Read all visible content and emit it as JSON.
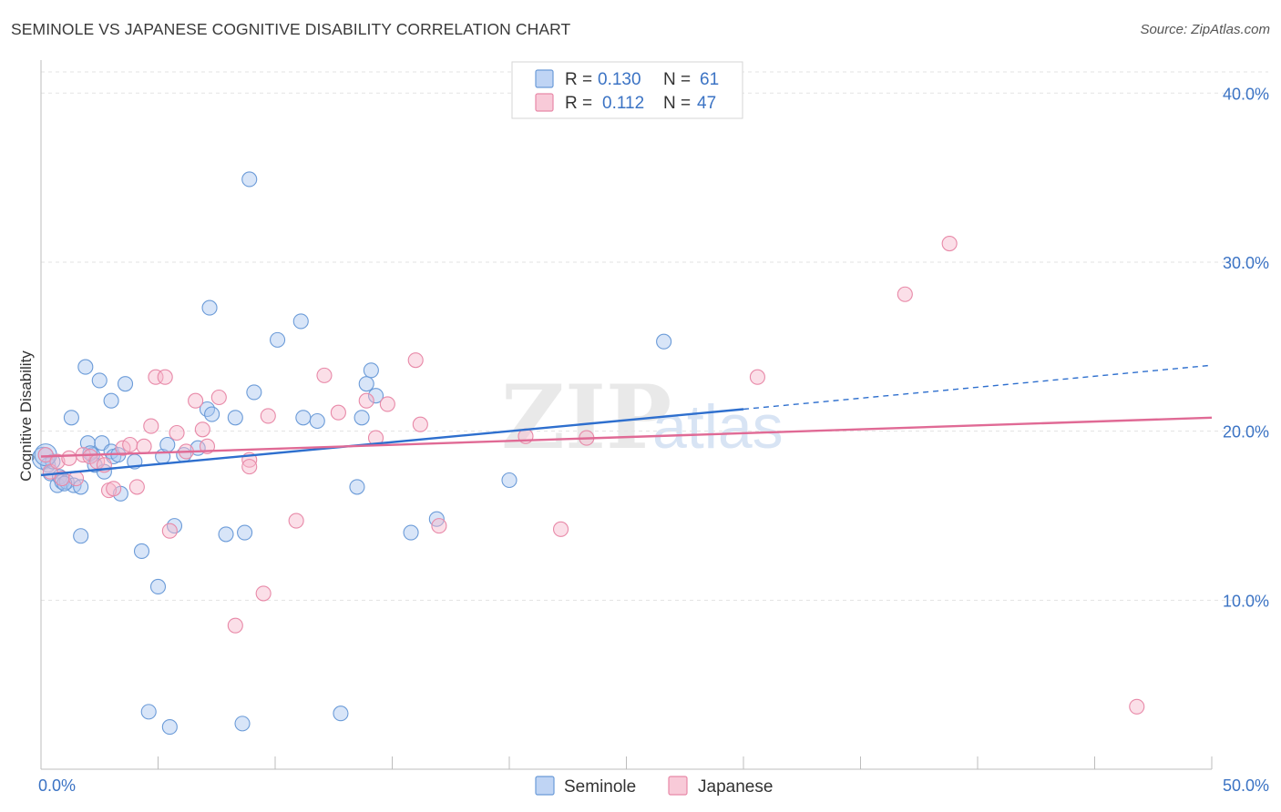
{
  "header": {
    "title": "SEMINOLE VS JAPANESE COGNITIVE DISABILITY CORRELATION CHART",
    "source": "Source: ZipAtlas.com"
  },
  "watermark": {
    "zip": "ZIP",
    "atlas": "atlas"
  },
  "legend_box": {
    "rows": [
      {
        "r_label": "R = ",
        "r_value": "0.130",
        "n_label": "N = ",
        "n_value": "61",
        "color": "#a9c6f0"
      },
      {
        "r_label": "R = ",
        "r_value": "0.112",
        "n_label": "N = ",
        "n_value": "47",
        "color": "#f6b8cb"
      }
    ]
  },
  "bottom_legend": {
    "items": [
      {
        "label": "Seminole",
        "color": "#a9c6f0"
      },
      {
        "label": "Japanese",
        "color": "#f6b8cb"
      }
    ]
  },
  "chart_data": {
    "type": "scatter",
    "title": "SEMINOLE VS JAPANESE COGNITIVE DISABILITY CORRELATION CHART",
    "xlabel": "",
    "ylabel": "Cognitive Disability",
    "xlim": [
      0,
      50
    ],
    "ylim": [
      0,
      40
    ],
    "x_tick_labels": [
      "0.0%",
      "50.0%"
    ],
    "y_ticks": [
      10,
      20,
      30,
      40
    ],
    "y_tick_labels": [
      "10.0%",
      "20.0%",
      "30.0%",
      "40.0%"
    ],
    "grid": true,
    "legend_position": "top-center",
    "series": [
      {
        "name": "Seminole",
        "color": "#6b9bd8",
        "fill": "#a9c6f0",
        "trend": {
          "x": [
            0,
            30
          ],
          "y": [
            17.4,
            21.3
          ],
          "dash_to_x": 50,
          "dash_to_y": 23.9,
          "color": "#2e6fce"
        },
        "points": [
          [
            0.1,
            18.4
          ],
          [
            0.3,
            18.0
          ],
          [
            0.4,
            17.5
          ],
          [
            0.5,
            18.2
          ],
          [
            0.7,
            16.8
          ],
          [
            0.8,
            17.3
          ],
          [
            0.9,
            17.0
          ],
          [
            1.1,
            17.0
          ],
          [
            1.3,
            20.8
          ],
          [
            1.4,
            16.8
          ],
          [
            1.7,
            16.7
          ],
          [
            1.7,
            13.8
          ],
          [
            1.9,
            23.8
          ],
          [
            2.0,
            19.3
          ],
          [
            2.2,
            18.6
          ],
          [
            2.3,
            18.0
          ],
          [
            2.5,
            23.0
          ],
          [
            2.6,
            19.3
          ],
          [
            2.7,
            17.6
          ],
          [
            3.0,
            18.8
          ],
          [
            3.0,
            21.8
          ],
          [
            3.1,
            18.5
          ],
          [
            3.3,
            18.6
          ],
          [
            3.4,
            16.3
          ],
          [
            3.6,
            22.8
          ],
          [
            4.0,
            18.2
          ],
          [
            4.3,
            12.9
          ],
          [
            4.6,
            3.4
          ],
          [
            5.0,
            10.8
          ],
          [
            5.2,
            18.5
          ],
          [
            5.4,
            19.2
          ],
          [
            5.5,
            2.5
          ],
          [
            5.7,
            14.4
          ],
          [
            6.1,
            18.6
          ],
          [
            6.7,
            19.0
          ],
          [
            7.1,
            21.3
          ],
          [
            7.2,
            27.3
          ],
          [
            7.3,
            21.0
          ],
          [
            7.9,
            13.9
          ],
          [
            8.3,
            20.8
          ],
          [
            8.6,
            2.7
          ],
          [
            8.7,
            14.0
          ],
          [
            8.9,
            34.9
          ],
          [
            9.1,
            22.3
          ],
          [
            10.1,
            25.4
          ],
          [
            11.1,
            26.5
          ],
          [
            11.2,
            20.8
          ],
          [
            11.8,
            20.6
          ],
          [
            12.8,
            3.3
          ],
          [
            13.5,
            16.7
          ],
          [
            13.7,
            20.8
          ],
          [
            13.9,
            22.8
          ],
          [
            14.1,
            23.6
          ],
          [
            14.3,
            22.1
          ],
          [
            15.8,
            14.0
          ],
          [
            16.9,
            14.8
          ],
          [
            20.0,
            17.1
          ],
          [
            26.6,
            25.3
          ],
          [
            0.2,
            18.6
          ],
          [
            1.0,
            16.9
          ],
          [
            2.1,
            18.7
          ]
        ]
      },
      {
        "name": "Japanese",
        "color": "#e889a8",
        "fill": "#f6b8cb",
        "trend": {
          "x": [
            0,
            50
          ],
          "y": [
            18.5,
            20.8
          ],
          "color": "#e06a95"
        },
        "points": [
          [
            0.2,
            18.6
          ],
          [
            0.4,
            17.6
          ],
          [
            0.7,
            18.2
          ],
          [
            0.9,
            17.2
          ],
          [
            1.2,
            18.4
          ],
          [
            1.5,
            17.2
          ],
          [
            1.8,
            18.6
          ],
          [
            2.1,
            18.5
          ],
          [
            2.4,
            18.2
          ],
          [
            2.7,
            18.0
          ],
          [
            2.9,
            16.5
          ],
          [
            3.1,
            16.6
          ],
          [
            3.5,
            19.0
          ],
          [
            3.8,
            19.2
          ],
          [
            4.1,
            16.7
          ],
          [
            4.4,
            19.1
          ],
          [
            4.7,
            20.3
          ],
          [
            4.9,
            23.2
          ],
          [
            5.3,
            23.2
          ],
          [
            5.5,
            14.1
          ],
          [
            5.8,
            19.9
          ],
          [
            6.2,
            18.8
          ],
          [
            6.6,
            21.8
          ],
          [
            6.9,
            20.1
          ],
          [
            7.1,
            19.1
          ],
          [
            7.6,
            22.0
          ],
          [
            8.3,
            8.5
          ],
          [
            8.9,
            18.3
          ],
          [
            8.9,
            17.9
          ],
          [
            9.5,
            10.4
          ],
          [
            9.7,
            20.9
          ],
          [
            10.9,
            14.7
          ],
          [
            12.1,
            23.3
          ],
          [
            12.7,
            21.1
          ],
          [
            13.9,
            21.8
          ],
          [
            14.3,
            19.6
          ],
          [
            14.8,
            21.6
          ],
          [
            16.0,
            24.2
          ],
          [
            16.2,
            20.4
          ],
          [
            17.0,
            14.4
          ],
          [
            20.7,
            19.7
          ],
          [
            22.2,
            14.2
          ],
          [
            23.3,
            19.6
          ],
          [
            30.6,
            23.2
          ],
          [
            36.9,
            28.1
          ],
          [
            38.8,
            31.1
          ],
          [
            46.8,
            3.7
          ]
        ]
      }
    ]
  }
}
